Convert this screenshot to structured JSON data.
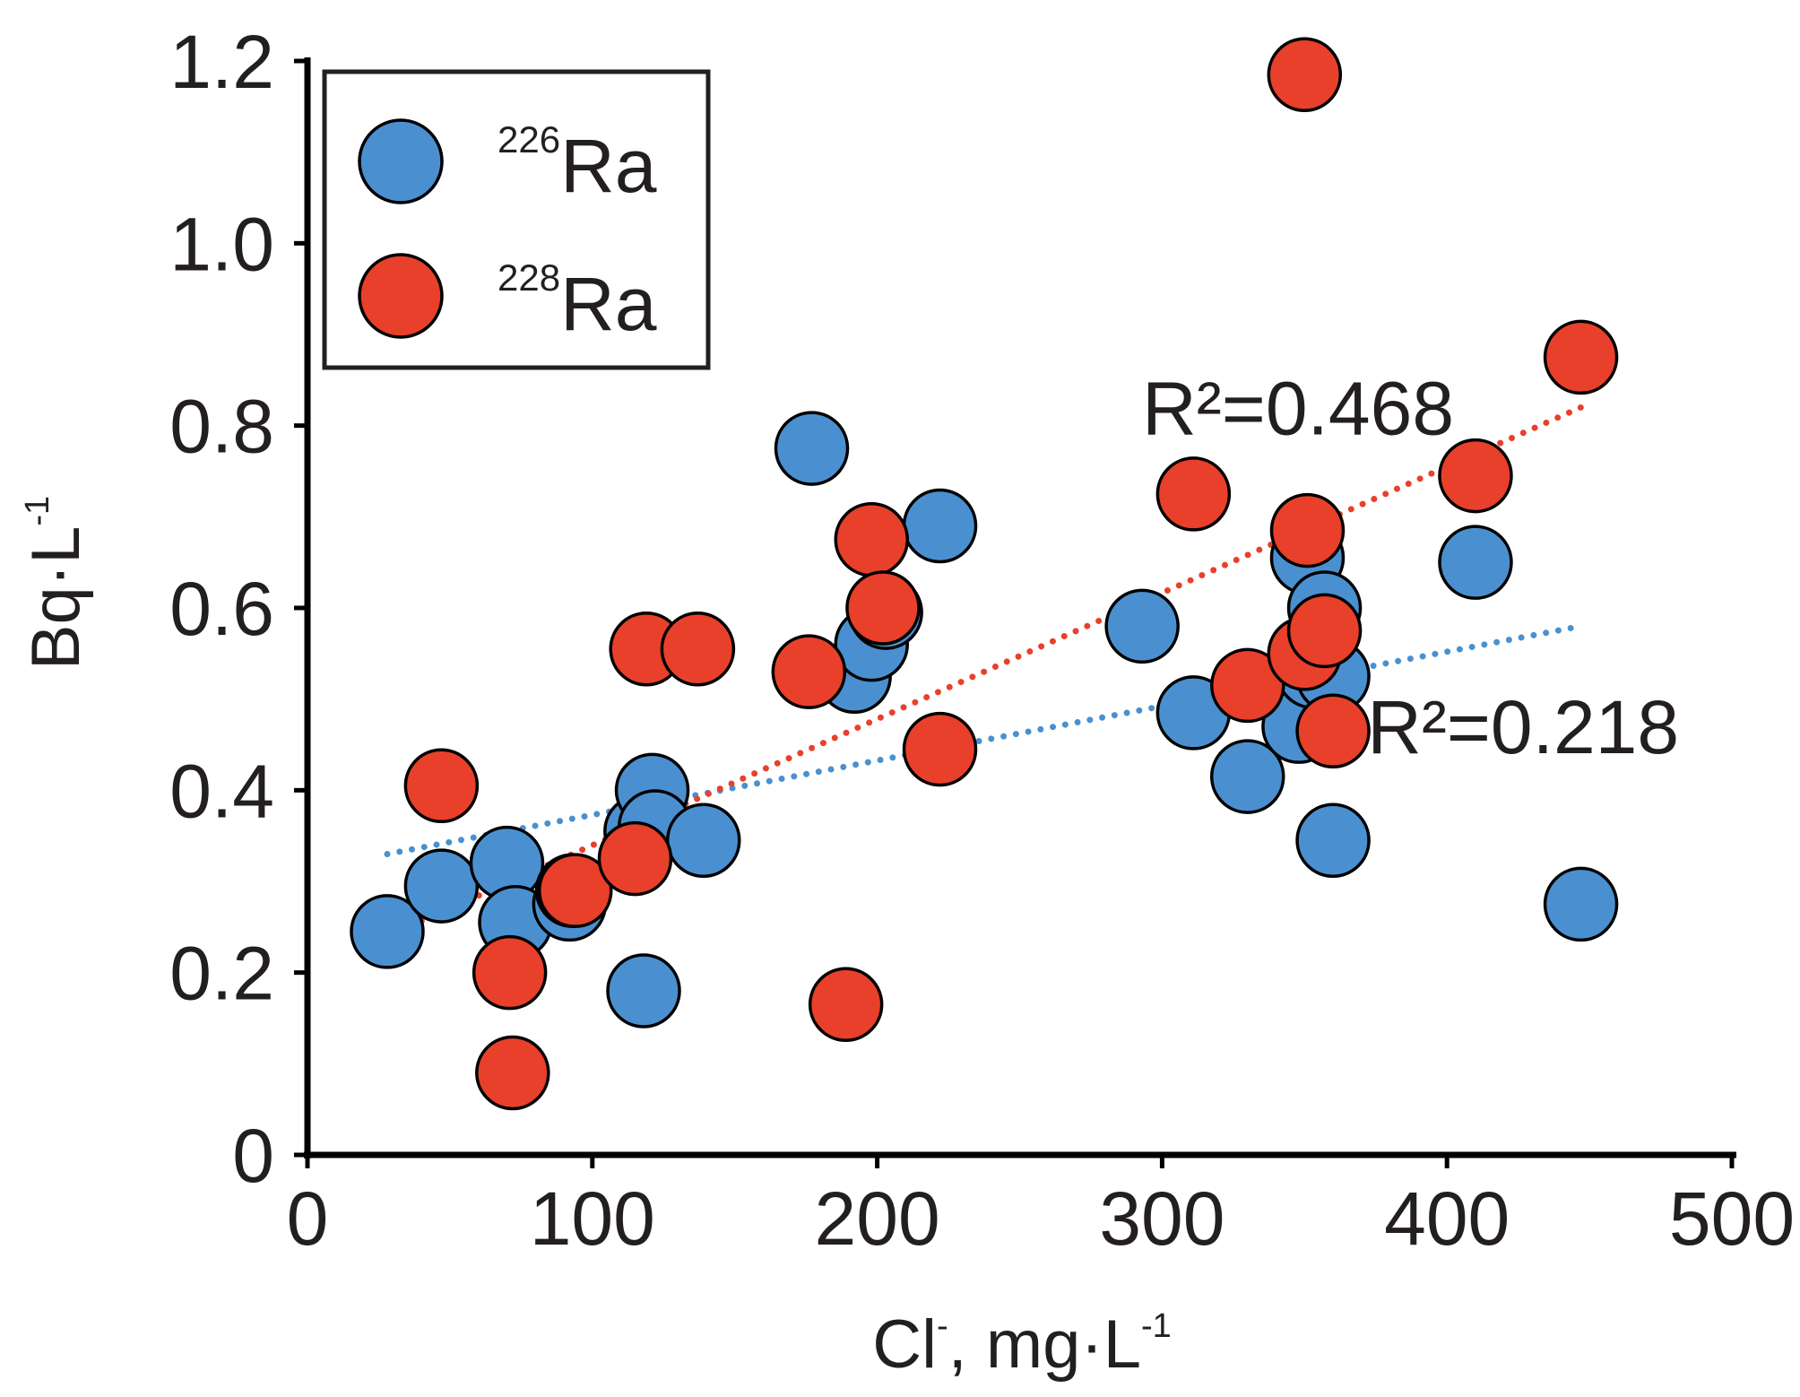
{
  "chart_data": {
    "type": "scatter",
    "xlabel": "Cl",
    "xlabel_sup": "-",
    "xlabel_rest": ", mg·L",
    "xlabel_rest_sup": "-1",
    "ylabel": "Bq·L",
    "ylabel_sup": "-1",
    "xlim": [
      0,
      500
    ],
    "ylim": [
      0,
      1.2
    ],
    "x_ticks": [
      0,
      100,
      200,
      300,
      400,
      500
    ],
    "x_tick_labels": [
      "0",
      "100",
      "200",
      "300",
      "400",
      "500"
    ],
    "y_ticks": [
      0,
      0.2,
      0.4,
      0.6,
      0.8,
      1.0,
      1.2
    ],
    "y_tick_labels": [
      "0",
      "0.2",
      "0.4",
      "0.6",
      "0.8",
      "1.0",
      "1.2"
    ],
    "legend_position": "top-left",
    "series": [
      {
        "name": "Ra",
        "isotope": "226",
        "color": "#4a90d0",
        "r2_label": "R²=0.218",
        "r2_position": [
          372,
          0.47
        ],
        "trend": {
          "x": [
            28,
            447
          ],
          "y": [
            0.33,
            0.58
          ]
        },
        "points": [
          {
            "x": 28,
            "y": 0.245
          },
          {
            "x": 47,
            "y": 0.295
          },
          {
            "x": 70,
            "y": 0.32
          },
          {
            "x": 73,
            "y": 0.255
          },
          {
            "x": 92,
            "y": 0.275
          },
          {
            "x": 93,
            "y": 0.29
          },
          {
            "x": 117,
            "y": 0.355
          },
          {
            "x": 118,
            "y": 0.18
          },
          {
            "x": 121,
            "y": 0.4
          },
          {
            "x": 122,
            "y": 0.36
          },
          {
            "x": 139,
            "y": 0.345
          },
          {
            "x": 177,
            "y": 0.775
          },
          {
            "x": 192,
            "y": 0.525
          },
          {
            "x": 198,
            "y": 0.56
          },
          {
            "x": 203,
            "y": 0.595
          },
          {
            "x": 222,
            "y": 0.69
          },
          {
            "x": 293,
            "y": 0.58
          },
          {
            "x": 311,
            "y": 0.485
          },
          {
            "x": 330,
            "y": 0.415
          },
          {
            "x": 348,
            "y": 0.47
          },
          {
            "x": 351,
            "y": 0.655
          },
          {
            "x": 353,
            "y": 0.53
          },
          {
            "x": 357,
            "y": 0.6
          },
          {
            "x": 360,
            "y": 0.525
          },
          {
            "x": 360,
            "y": 0.345
          },
          {
            "x": 410,
            "y": 0.65
          },
          {
            "x": 447,
            "y": 0.275
          }
        ]
      },
      {
        "name": "Ra",
        "isotope": "228",
        "color": "#e8402a",
        "r2_label": "R²=0.468",
        "r2_position": [
          293,
          0.82
        ],
        "trend": {
          "x": [
            28,
            447
          ],
          "y": [
            0.24,
            0.82
          ]
        },
        "points": [
          {
            "x": 47,
            "y": 0.405
          },
          {
            "x": 71,
            "y": 0.2
          },
          {
            "x": 72,
            "y": 0.09
          },
          {
            "x": 94,
            "y": 0.29
          },
          {
            "x": 115,
            "y": 0.325
          },
          {
            "x": 119,
            "y": 0.555
          },
          {
            "x": 137,
            "y": 0.555
          },
          {
            "x": 176,
            "y": 0.53
          },
          {
            "x": 189,
            "y": 0.165
          },
          {
            "x": 198,
            "y": 0.675
          },
          {
            "x": 202,
            "y": 0.6
          },
          {
            "x": 222,
            "y": 0.445
          },
          {
            "x": 311,
            "y": 0.725
          },
          {
            "x": 330,
            "y": 0.515
          },
          {
            "x": 350,
            "y": 1.185
          },
          {
            "x": 350,
            "y": 0.55
          },
          {
            "x": 351,
            "y": 0.685
          },
          {
            "x": 357,
            "y": 0.575
          },
          {
            "x": 360,
            "y": 0.465
          },
          {
            "x": 410,
            "y": 0.745
          },
          {
            "x": 447,
            "y": 0.875
          }
        ]
      }
    ]
  }
}
